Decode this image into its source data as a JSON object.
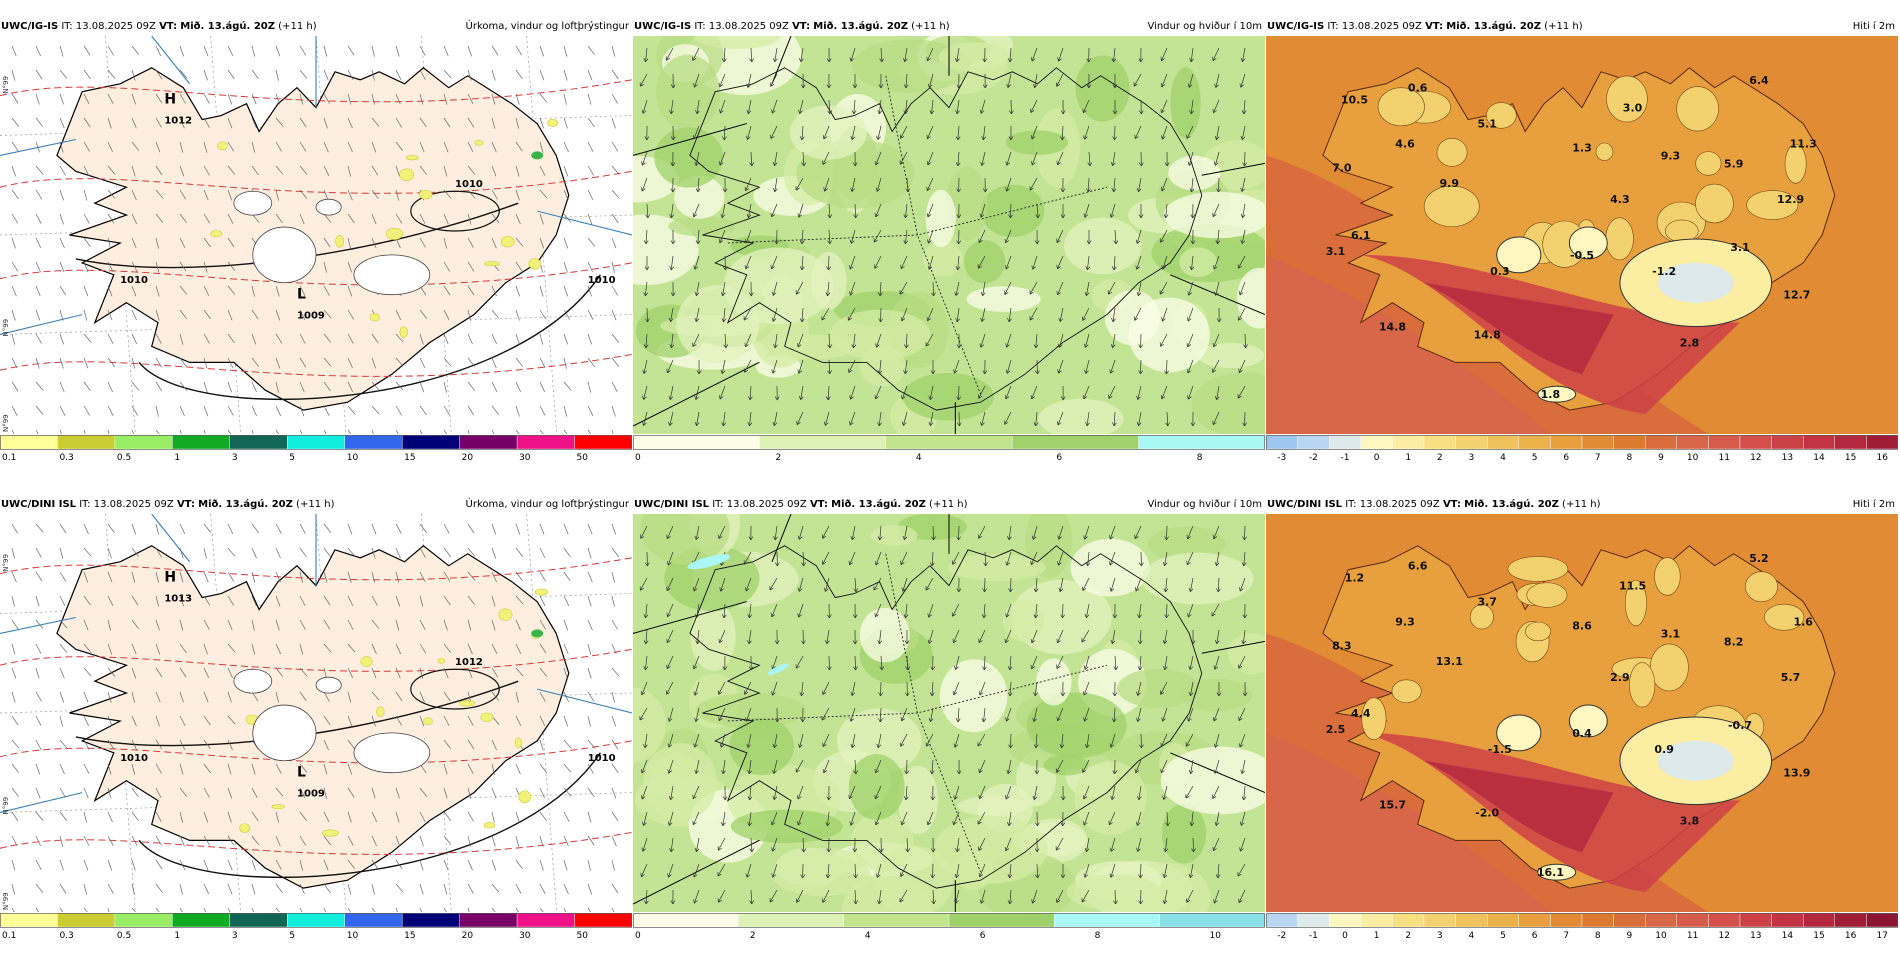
{
  "rows": [
    {
      "model": "UWC/IG-IS",
      "run": "IT: 13.08.2025 09Z",
      "valid": "Mið. 13.ágú. 20Z",
      "lead": "(+11 h)"
    },
    {
      "model": "UWC/DINI ISL",
      "run": "IT: 13.08.2025 09Z",
      "valid": "Mið. 13.ágú. 20Z",
      "lead": "(+11 h)"
    }
  ],
  "vt_label": "VT:",
  "panels": {
    "precip": {
      "title": "Úrkoma, vindur og loftþrýstingur"
    },
    "wind": {
      "title": "Vindur og hviður í 10m"
    },
    "temp": {
      "title": "Hiti í 2m"
    }
  },
  "map_labels": {
    "r0_precip": [
      {
        "t": "H"
      },
      {
        "t": "1012"
      },
      {
        "t": "L"
      },
      {
        "t": "1009"
      },
      {
        "t": "1010"
      },
      {
        "t": "1010"
      },
      {
        "t": "1010"
      }
    ],
    "r1_precip": [
      {
        "t": "H"
      },
      {
        "t": "1013"
      },
      {
        "t": "L"
      },
      {
        "t": "1009"
      },
      {
        "t": "1012"
      },
      {
        "t": "1010"
      },
      {
        "t": "1010"
      }
    ],
    "r0_temp": [
      "10.5",
      "0.6",
      "6.4",
      "7.0",
      "4.6",
      "5.1",
      "3.0",
      "11.3",
      "1.3",
      "9.3",
      "5.9",
      "9.9",
      "4.3",
      "12.9",
      "6.1",
      "3.1",
      "-0.5",
      "3.1",
      "0.3",
      "-1.2",
      "12.7",
      "14.8",
      "14.8",
      "2.8",
      "1.8"
    ],
    "r1_temp": [
      "1.2",
      "6.6",
      "5.2",
      "8.3",
      "9.3",
      "3.7",
      "11.5",
      "1.6",
      "8.6",
      "3.1",
      "8.2",
      "13.1",
      "2.9",
      "5.7",
      "4.4",
      "2.5",
      "0.4",
      "-0.7",
      "-1.5",
      "0.9",
      "13.9",
      "15.7",
      "-2.0",
      "3.8",
      "16.1"
    ]
  },
  "colorbars": {
    "precip": {
      "ticks": [
        "0.1",
        "0.3",
        "0.5",
        "1",
        "3",
        "5",
        "10",
        "15",
        "20",
        "30",
        "50"
      ],
      "colors": [
        "#ffff99",
        "#cccc33",
        "#99ee66",
        "#11aa22",
        "#116655",
        "#11eedd",
        "#3366ee",
        "#000077",
        "#770066",
        "#ee1188",
        "#ff0000"
      ]
    },
    "wind_r0": {
      "ticks": [
        "0",
        "2",
        "4",
        "6",
        "8"
      ],
      "colors": [
        "#fbfde8",
        "#ddf0b5",
        "#c1e48c",
        "#9fd26a",
        "#aaf8f5"
      ]
    },
    "wind_r1": {
      "ticks": [
        "0",
        "2",
        "4",
        "6",
        "8",
        "10"
      ],
      "colors": [
        "#fbfde8",
        "#ddf0b5",
        "#c1e48c",
        "#9fd26a",
        "#aaf8f5",
        "#88e1e8"
      ]
    },
    "temp_r0": {
      "ticks": [
        "-3",
        "-2",
        "-1",
        "0",
        "1",
        "2",
        "3",
        "4",
        "5",
        "6",
        "7",
        "8",
        "9",
        "10",
        "11",
        "12",
        "13",
        "14",
        "15",
        "16"
      ],
      "colors": [
        "#9ec6ee",
        "#b8d6f2",
        "#dde9ea",
        "#fff7c0",
        "#fbeea2",
        "#f6e082",
        "#f2d16e",
        "#efc25c",
        "#ebb24b",
        "#e89f3e",
        "#e28b35",
        "#dc7a30",
        "#d96d3c",
        "#d86648",
        "#d75b4b",
        "#d5504a",
        "#cc4146",
        "#c23343",
        "#b3273f",
        "#a01d38"
      ]
    },
    "temp_r1": {
      "ticks": [
        "-2",
        "-1",
        "0",
        "1",
        "2",
        "3",
        "4",
        "5",
        "6",
        "7",
        "8",
        "9",
        "10",
        "11",
        "12",
        "13",
        "14",
        "15",
        "16",
        "17"
      ],
      "colors": [
        "#b8d6f2",
        "#dde9ea",
        "#fff7c0",
        "#fbeea2",
        "#f6e082",
        "#f2d16e",
        "#efc25c",
        "#ebb24b",
        "#e89f3e",
        "#e28b35",
        "#dc7a30",
        "#d96d3c",
        "#d86648",
        "#d75b4b",
        "#d5504a",
        "#cc4146",
        "#c23343",
        "#b3273f",
        "#a01d38",
        "#8e1532"
      ]
    }
  },
  "grid_labels": [
    "N°99",
    "N°59",
    "N°65",
    "N°63",
    "N°99",
    "N°59"
  ]
}
